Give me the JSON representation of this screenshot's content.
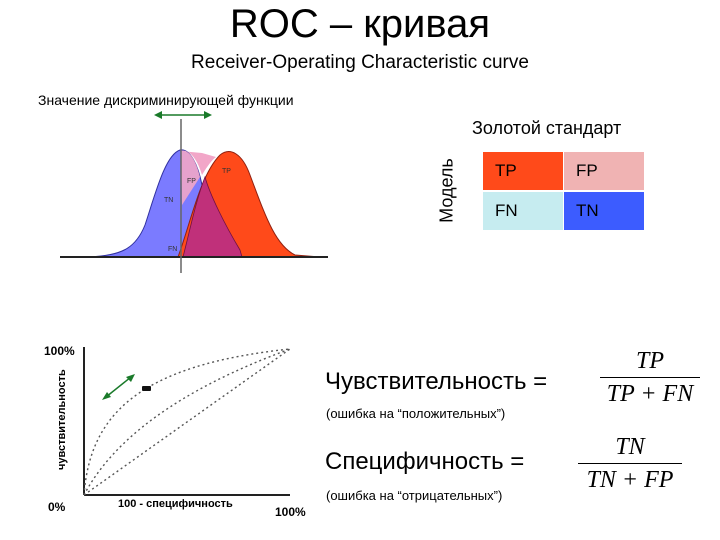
{
  "title": "ROC – кривая",
  "subtitle": "Receiver-Operating Characteristic curve",
  "discriminant_label": "Значение дискриминирующей функции",
  "gold_standard_label": "Золотой стандарт",
  "model_label": "Модель",
  "distribution_labels": {
    "fp": "FP",
    "tp": "TP",
    "tn": "TN",
    "fn": "FN"
  },
  "matrix": {
    "tp": "TP",
    "fp": "FP",
    "fn": "FN",
    "tn": "TN",
    "colors": {
      "tp": "#ff4a1a",
      "fp": "#f0b3b3",
      "fn": "#c6ecf0",
      "tn": "#3c5cff"
    }
  },
  "curve_colors": {
    "negative": "#7b7bff",
    "positive": "#ff4a1a",
    "overlap": "#c0307a",
    "overlap_light": "#f2a6c8"
  },
  "roc": {
    "y_axis_label": "чувствительность",
    "x_axis_label": "100 - специфичность",
    "y_max_label": "100%",
    "origin_label": "0%",
    "x_max_label": "100%"
  },
  "sensitivity": {
    "label": "Чувствительность =",
    "note": "(ошибка на “положительных”)",
    "numerator": "TP",
    "denominator": "TP + FN"
  },
  "specificity": {
    "label": "Специфичность =",
    "note": "(ошибка на “отрицательных”)",
    "numerator": "TN",
    "denominator": "TN + FP"
  }
}
